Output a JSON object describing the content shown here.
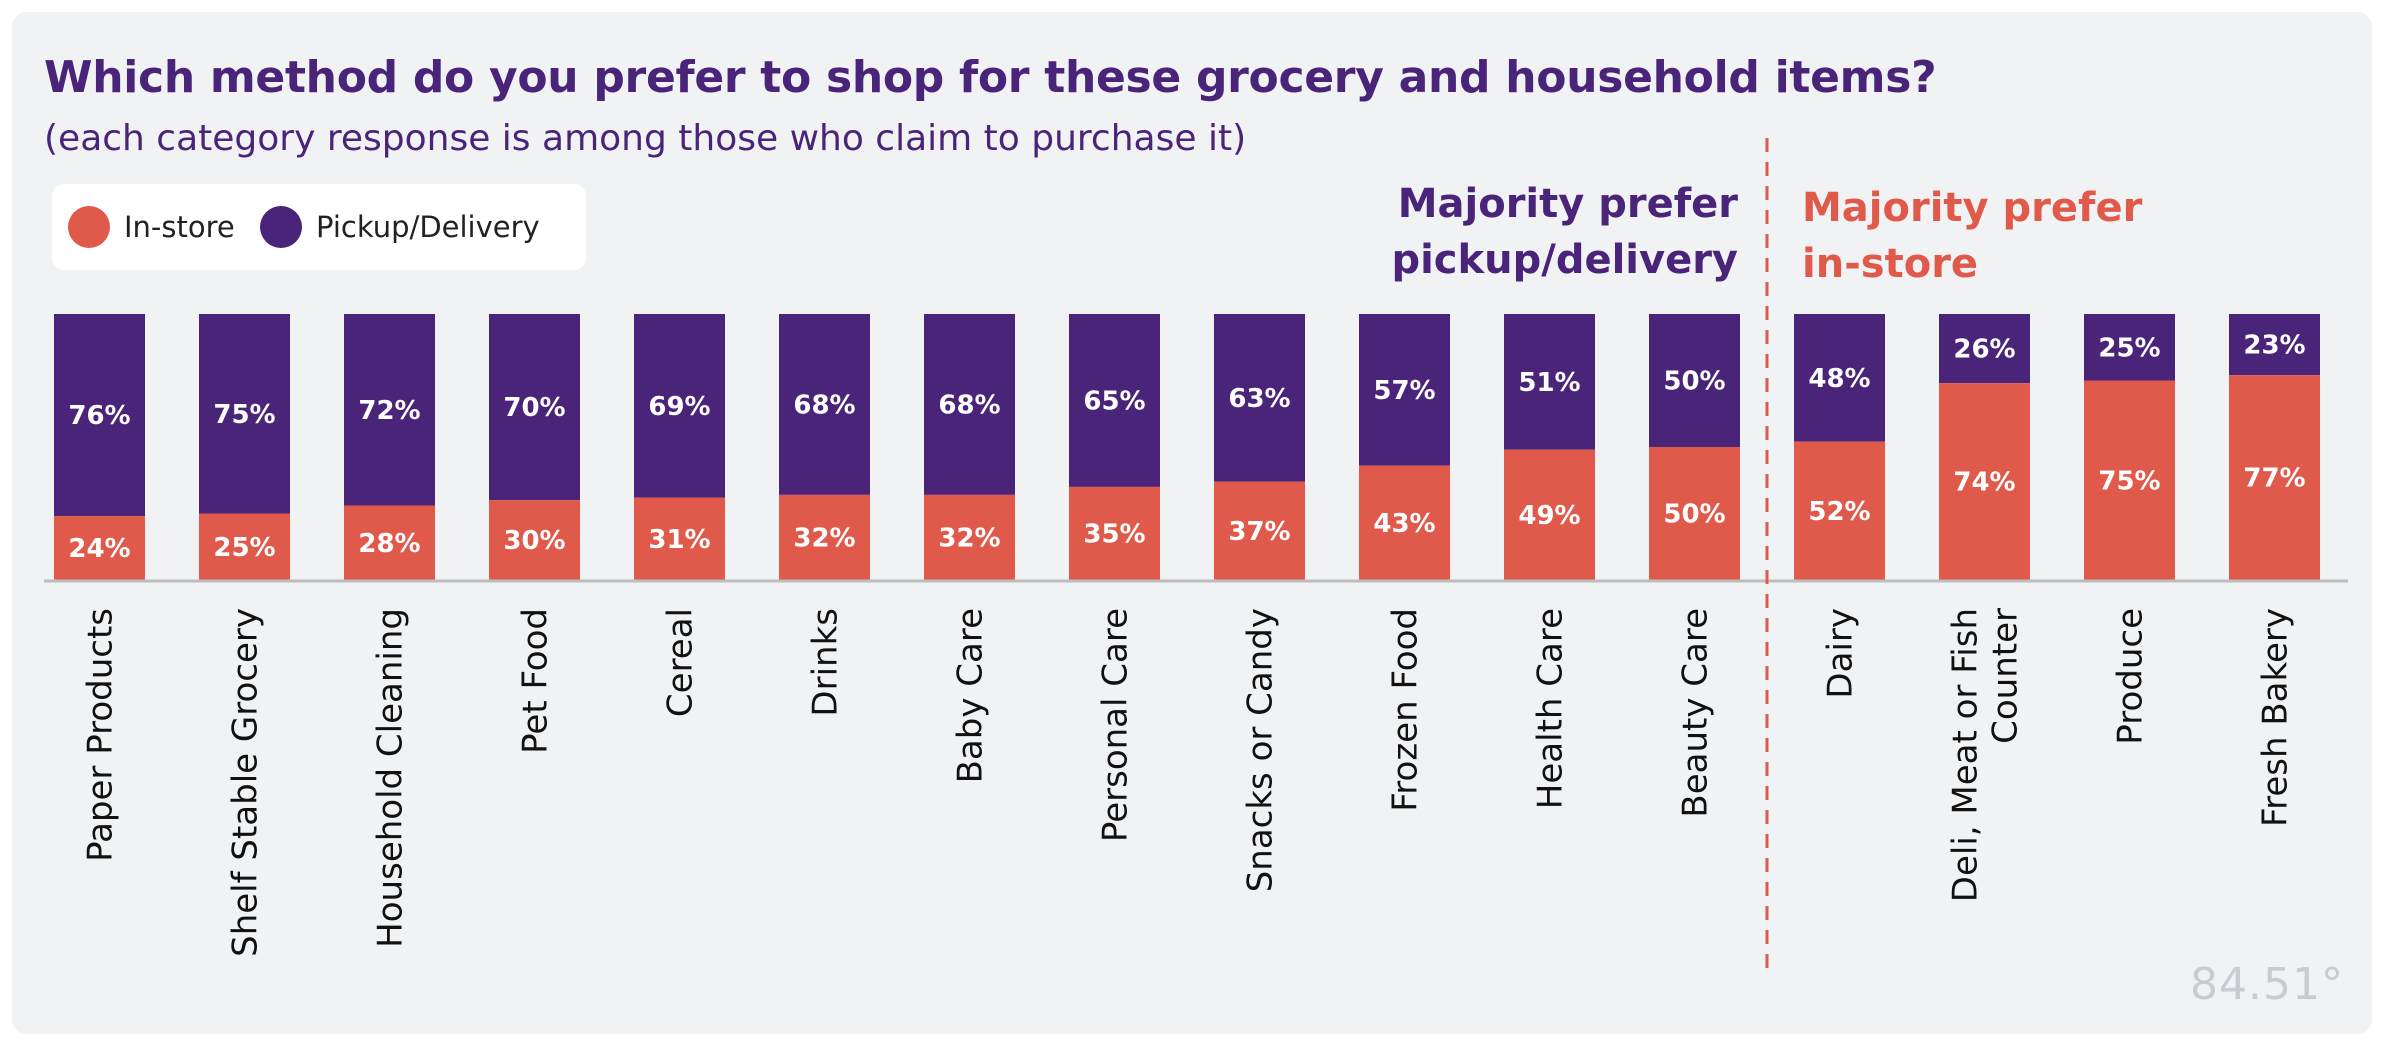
{
  "chart_data": {
    "type": "bar",
    "stacked": true,
    "title": "Which method do you prefer to shop for these grocery and household items?",
    "subtitle": "(each category response is among those who claim to purchase it)",
    "categories": [
      [
        "Paper Products"
      ],
      [
        "Shelf Stable Grocery"
      ],
      [
        "Household Cleaning"
      ],
      [
        "Pet Food"
      ],
      [
        "Cereal"
      ],
      [
        "Drinks"
      ],
      [
        "Baby Care"
      ],
      [
        "Personal Care"
      ],
      [
        "Snacks or Candy"
      ],
      [
        "Frozen Food"
      ],
      [
        "Health Care"
      ],
      [
        "Beauty Care"
      ],
      [
        "Dairy"
      ],
      [
        "Deli, Meat or Fish",
        "Counter"
      ],
      [
        "Produce"
      ],
      [
        "Fresh Bakery"
      ]
    ],
    "series": [
      {
        "name": "In-store",
        "color": "#e05a4b",
        "values": [
          24,
          25,
          28,
          30,
          31,
          32,
          32,
          35,
          37,
          43,
          49,
          50,
          52,
          74,
          75,
          77
        ],
        "labels": [
          "24%",
          "25%",
          "28%",
          "30%",
          "31%",
          "32%",
          "32%",
          "35%",
          "37%",
          "43%",
          "49%",
          "50%",
          "52%",
          "74%",
          "75%",
          "77%"
        ]
      },
      {
        "name": "Pickup/Delivery",
        "color": "#4a2479",
        "values": [
          76,
          75,
          72,
          70,
          69,
          68,
          68,
          65,
          63,
          57,
          51,
          50,
          48,
          26,
          25,
          23
        ],
        "labels": [
          "76%",
          "75%",
          "72%",
          "70%",
          "69%",
          "68%",
          "68%",
          "65%",
          "63%",
          "57%",
          "51%",
          "50%",
          "48%",
          "26%",
          "25%",
          "23%"
        ]
      }
    ],
    "ylim": [
      0,
      100
    ],
    "xlabel": "",
    "ylabel": "",
    "legend": "top-left",
    "divider_after_index": 11,
    "annotations": {
      "left": [
        "Majority prefer",
        "pickup/delivery"
      ],
      "right": [
        "Majority prefer",
        "in-store"
      ]
    },
    "divider_color": "#e05a4b",
    "baseline_color": "#bdbdbd"
  },
  "logo_text": "84.51°"
}
